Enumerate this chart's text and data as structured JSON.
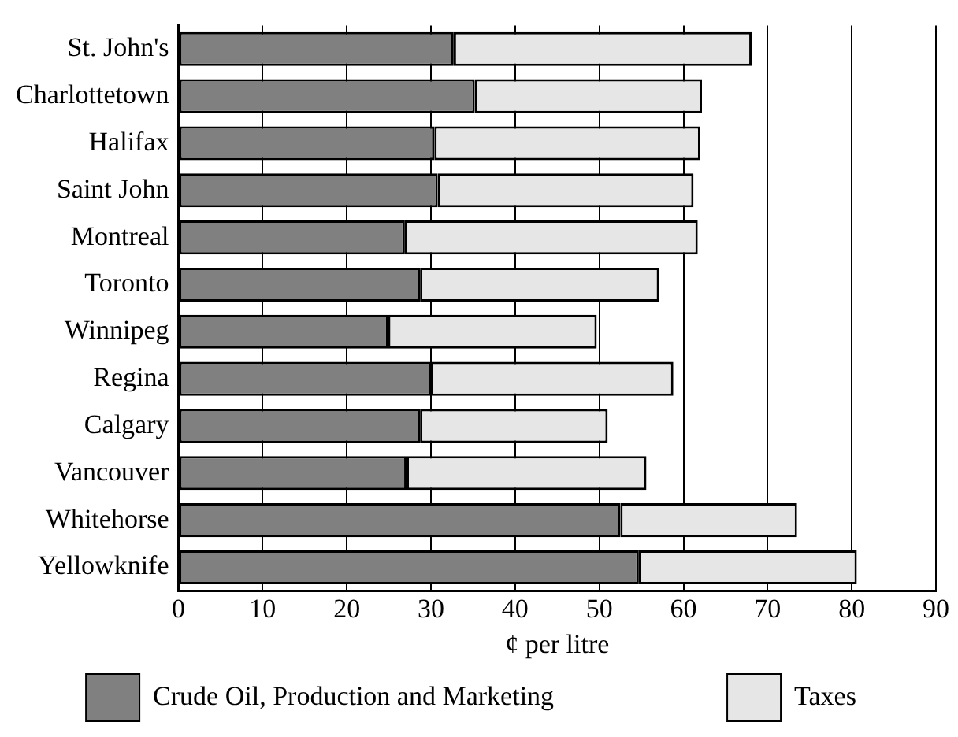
{
  "chart_data": {
    "type": "bar",
    "orientation": "horizontal",
    "stacked": true,
    "xlabel": "¢ per litre",
    "categories": [
      "St. John's",
      "Charlottetown",
      "Halifax",
      "Saint John",
      "Montreal",
      "Toronto",
      "Winnipeg",
      "Regina",
      "Calgary",
      "Vancouver",
      "Whitehorse",
      "Yellowknife"
    ],
    "series": [
      {
        "name": "Crude Oil, Production and Marketing",
        "color": "#808080",
        "values": [
          32.7,
          35.2,
          30.4,
          30.8,
          26.9,
          28.7,
          24.9,
          30.0,
          28.7,
          27.1,
          52.5,
          54.7
        ]
      },
      {
        "name": "Taxes",
        "color": "#e6e6e6",
        "values": [
          35.4,
          27.0,
          31.6,
          30.4,
          34.8,
          28.4,
          24.8,
          28.8,
          22.3,
          28.5,
          21.0,
          25.9
        ]
      }
    ],
    "xlim": [
      0,
      90
    ],
    "xticks": [
      0,
      10,
      20,
      30,
      40,
      50,
      60,
      70,
      80,
      90
    ],
    "grid": "x",
    "legend": "bottom"
  }
}
